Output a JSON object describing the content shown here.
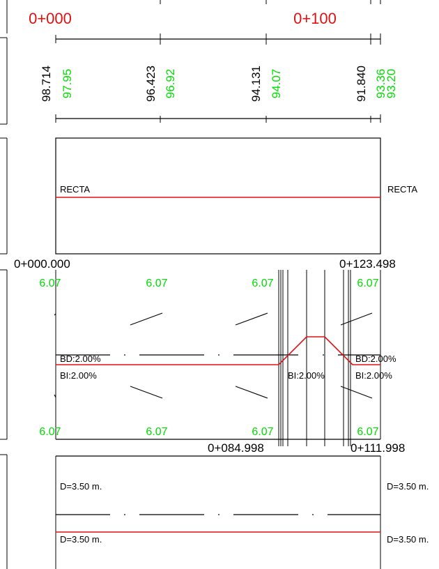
{
  "colors": {
    "red": "#e01010",
    "green": "#00dd00",
    "black": "#000000",
    "background": "#ffffff"
  },
  "stations": {
    "km_0": "0+000",
    "km_100": "0+100"
  },
  "elevations": [
    {
      "terrain": "98.714",
      "grade": "97.95"
    },
    {
      "terrain": "96.423",
      "grade": "96.92"
    },
    {
      "terrain": "94.131",
      "grade": "94.07"
    },
    {
      "terrain": "91.840",
      "grade_a": "93.36",
      "grade_b": "93.20"
    }
  ],
  "alignment": {
    "left_label": "RECTA",
    "right_label": "RECTA",
    "start_station": "0+000.000",
    "end_station": "0+123.498"
  },
  "superelevation": {
    "widths_top": [
      "6.07",
      "6.07",
      "6.07",
      "6.07"
    ],
    "widths_bottom": [
      "6.07",
      "6.07",
      "6.07",
      "6.07"
    ],
    "bd_left": "BD:2.00%",
    "bi_left": "BI:2.00%",
    "bi_mid": "BI:2.00%",
    "bd_right": "BD:2.00%",
    "bi_right": "BI:2.00%",
    "station_a": "0+084.998",
    "station_b": "0+111.998"
  },
  "lanes": {
    "d_top_left": "D=3.50 m.",
    "d_top_right": "D=3.50 m.",
    "d_bottom_left": "D=3.50 m.",
    "d_bottom_right": "D=3.50 m."
  }
}
